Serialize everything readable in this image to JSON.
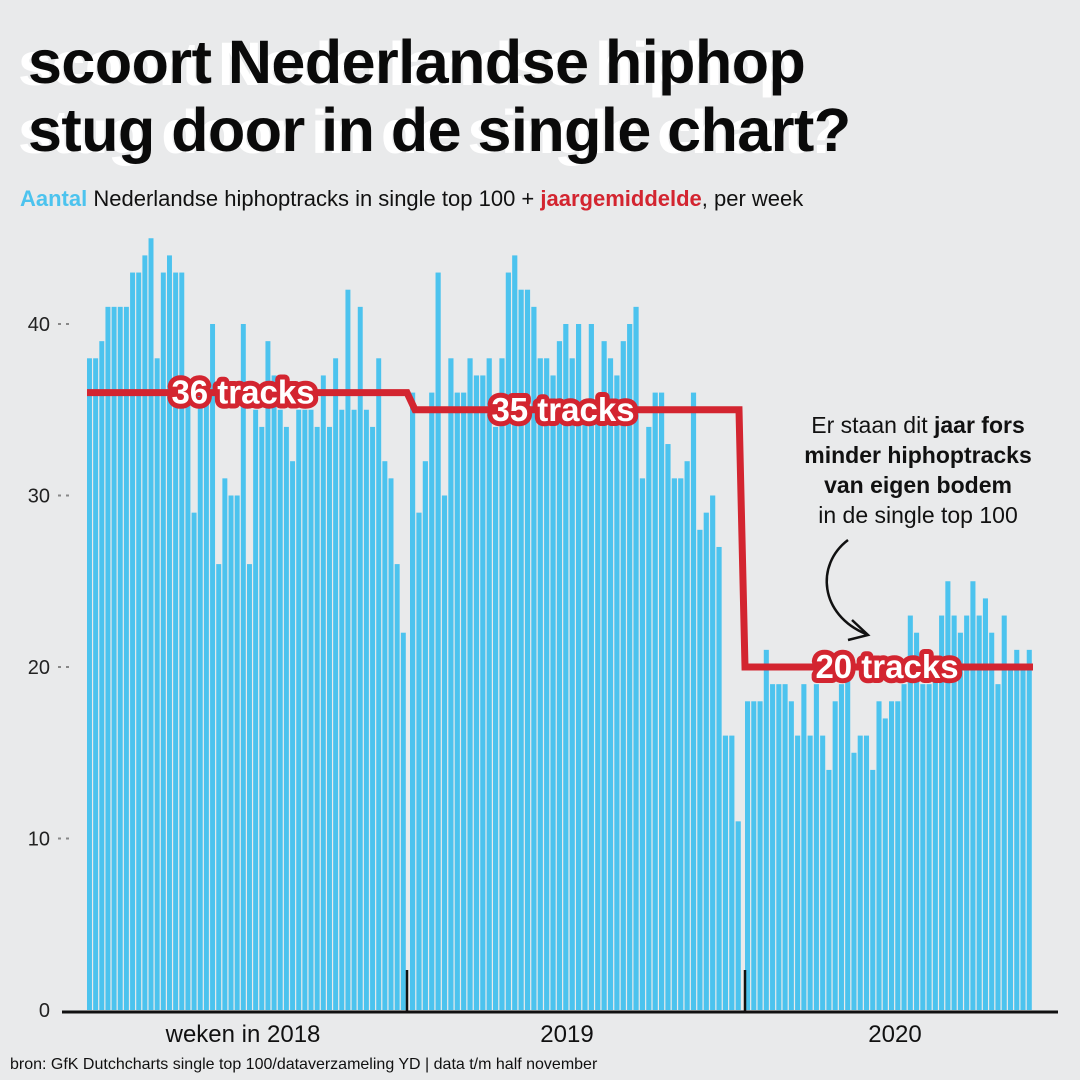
{
  "title": {
    "line1": "scoort Nederlandse hiphop",
    "line2": "stug door in de single chart?"
  },
  "subtitle": {
    "highlight_blue": "Aantal",
    "middle": " Nederlandse hiphoptracks in single top 100 + ",
    "highlight_red": "jaargemiddelde",
    "end": ", per week"
  },
  "annotation": {
    "part1": "Er staan dit ",
    "bold1": "jaar fors",
    "bold2": "minder hiphoptracks",
    "bold3": "van eigen bodem",
    "part2": "in de single top 100"
  },
  "footer": "bron: GfK Dutchcharts single top 100/dataverzameling YD | data t/m half november",
  "colors": {
    "bar": "#4cc3ee",
    "average": "#d32530",
    "background": "#e9eaeb"
  },
  "chart_data": {
    "type": "bar",
    "title": "Aantal Nederlandse hiphoptracks in single top 100 + jaargemiddelde, per week",
    "xlabel": "weken",
    "ylabel": "",
    "ylim": [
      0,
      45
    ],
    "yticks": [
      0,
      10,
      20,
      30,
      40
    ],
    "year_labels": [
      "weken in 2018",
      "2019",
      "2020"
    ],
    "series": [
      {
        "name": "2018",
        "values": [
          38,
          38,
          39,
          41,
          41,
          41,
          41,
          43,
          43,
          44,
          45,
          38,
          43,
          44,
          43,
          43,
          36,
          29,
          36,
          36,
          40,
          26,
          31,
          30,
          30,
          40,
          26,
          35,
          34,
          39,
          37,
          35,
          34,
          32,
          35,
          35,
          35,
          34,
          37,
          34,
          38,
          35,
          42,
          35,
          41,
          35,
          34,
          38,
          32,
          31,
          26,
          22
        ]
      },
      {
        "name": "2019",
        "values": [
          36,
          29,
          32,
          36,
          43,
          30,
          38,
          36,
          36,
          38,
          37,
          37,
          38,
          34,
          38,
          43,
          44,
          42,
          42,
          41,
          38,
          38,
          37,
          39,
          40,
          38,
          40,
          35,
          40,
          35,
          39,
          38,
          37,
          39,
          40,
          41,
          31,
          34,
          36,
          36,
          33,
          31,
          31,
          32,
          36,
          28,
          29,
          30,
          27,
          16,
          16,
          11
        ]
      },
      {
        "name": "2020",
        "values": [
          18,
          18,
          18,
          21,
          19,
          19,
          19,
          18,
          16,
          19,
          16,
          19,
          16,
          14,
          18,
          19,
          20,
          15,
          16,
          16,
          14,
          18,
          17,
          18,
          18,
          19,
          23,
          22,
          19,
          19,
          20,
          23,
          25,
          23,
          22,
          23,
          25,
          23,
          24,
          22,
          19,
          23,
          20,
          21,
          20,
          21
        ]
      }
    ],
    "averages": [
      {
        "year": "2018",
        "value": 36,
        "label": "36 tracks"
      },
      {
        "year": "2019",
        "value": 35,
        "label": "35 tracks"
      },
      {
        "year": "2020",
        "value": 20,
        "label": "20 tracks"
      }
    ]
  }
}
